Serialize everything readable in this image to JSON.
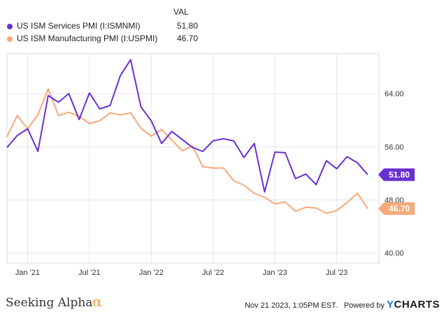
{
  "legend": {
    "header": "VAL",
    "items": [
      {
        "name": "US ISM Services PMI (I:ISMNMI)",
        "value": "51.80",
        "color": "#6b2fd0"
      },
      {
        "name": "US ISM Manufacturing PMI (I:USPMI)",
        "value": "46.70",
        "color": "#f7a979"
      }
    ]
  },
  "footer": {
    "brand": "Seeking Alpha",
    "brand_symbol": "α",
    "timestamp": "Nov 21 2023, 1:05PM EST.",
    "powered_by": "Powered by",
    "ycharts": "CHARTS",
    "ycharts_y": "Y"
  },
  "chart_data": {
    "type": "line",
    "x_tick_labels": [
      "Jan '21",
      "Jul '21",
      "Jan '22",
      "Jul '22",
      "Jan '23",
      "Jul '23"
    ],
    "x_tick_months": [
      0,
      6,
      12,
      18,
      24,
      30
    ],
    "y_ticks": [
      40,
      48,
      56,
      64
    ],
    "y_tick_labels": [
      "40.00",
      "48.00",
      "56.00",
      "64.00"
    ],
    "ylim": [
      38.5,
      70
    ],
    "x_months": [
      -2,
      -1,
      0,
      1,
      2,
      3,
      4,
      5,
      6,
      7,
      8,
      9,
      10,
      11,
      12,
      13,
      14,
      15,
      16,
      17,
      18,
      19,
      20,
      21,
      22,
      23,
      24,
      25,
      26,
      27,
      28,
      29,
      30,
      31,
      32,
      33
    ],
    "grid": true,
    "series": [
      {
        "name": "US ISM Services PMI (I:ISMNMI)",
        "color": "#6b2fd0",
        "last_label": "51.80",
        "values": [
          55.9,
          57.7,
          58.7,
          55.3,
          63.7,
          62.7,
          64.0,
          60.1,
          64.1,
          61.7,
          62.2,
          66.7,
          69.1,
          62.0,
          59.9,
          56.5,
          58.3,
          57.1,
          55.9,
          55.3,
          56.9,
          57.2,
          56.9,
          54.4,
          56.5,
          49.2,
          55.2,
          55.1,
          51.2,
          51.9,
          50.3,
          53.9,
          52.7,
          54.5,
          53.6,
          51.8
        ]
      },
      {
        "name": "US ISM Manufacturing PMI (I:USPMI)",
        "color": "#f7a979",
        "last_label": "46.70",
        "values": [
          57.5,
          60.7,
          58.7,
          60.8,
          64.7,
          60.7,
          61.2,
          60.6,
          59.5,
          59.9,
          61.1,
          60.8,
          61.1,
          58.8,
          57.6,
          58.6,
          57.0,
          55.4,
          56.1,
          53.0,
          52.8,
          52.8,
          50.9,
          50.2,
          49.0,
          48.4,
          47.4,
          47.7,
          46.3,
          46.9,
          46.8,
          46.0,
          46.4,
          47.6,
          49.0,
          46.7
        ]
      }
    ]
  }
}
